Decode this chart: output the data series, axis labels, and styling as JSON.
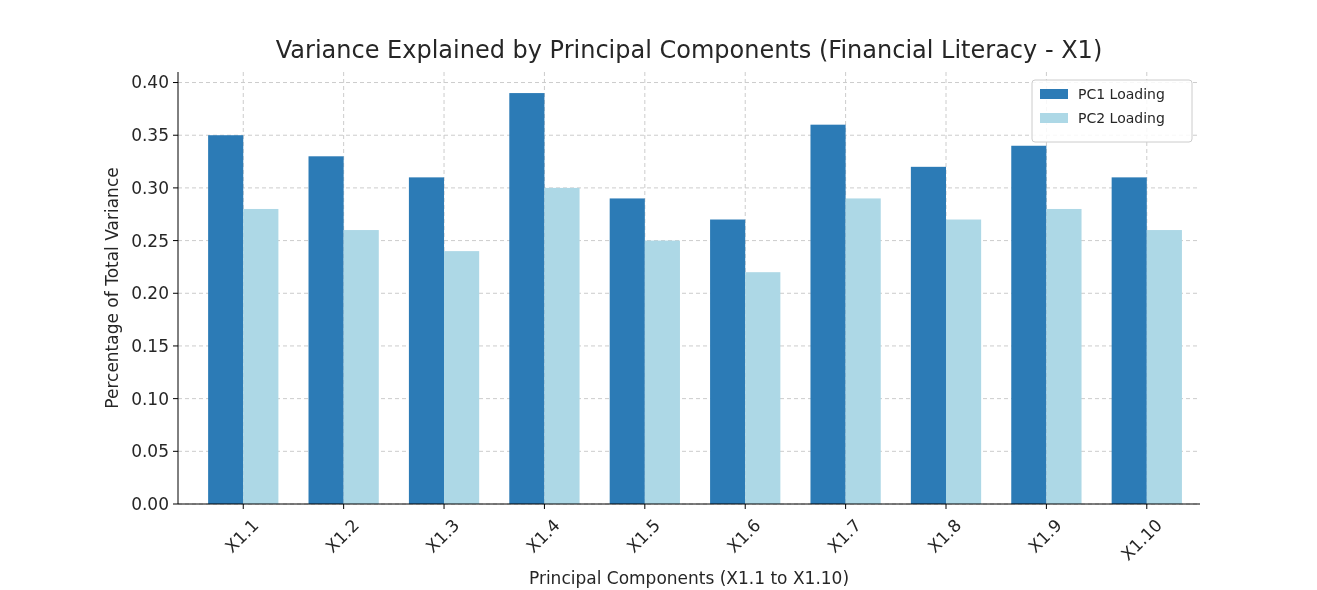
{
  "chart_data": {
    "type": "bar",
    "title": "Variance Explained by Principal Components (Financial Literacy - X1)",
    "xlabel": "Principal Components (X1.1 to X1.10)",
    "ylabel": "Percentage of Total Variance",
    "categories": [
      "X1.1",
      "X1.2",
      "X1.3",
      "X1.4",
      "X1.5",
      "X1.6",
      "X1.7",
      "X1.8",
      "X1.9",
      "X1.10"
    ],
    "series": [
      {
        "name": "PC1 Loading",
        "color": "#2c7bb6",
        "values": [
          0.35,
          0.33,
          0.31,
          0.39,
          0.29,
          0.27,
          0.36,
          0.32,
          0.34,
          0.31
        ]
      },
      {
        "name": "PC2 Loading",
        "color": "#add8e6",
        "values": [
          0.28,
          0.26,
          0.24,
          0.3,
          0.25,
          0.22,
          0.29,
          0.27,
          0.28,
          0.26
        ]
      }
    ],
    "ylim": [
      0,
      0.41
    ],
    "yticks": [
      {
        "value": 0,
        "label": "0.00"
      },
      {
        "value": 0.05,
        "label": "0.05"
      },
      {
        "value": 0.1,
        "label": "0.10"
      },
      {
        "value": 0.15,
        "label": "0.15"
      },
      {
        "value": 0.2,
        "label": "0.20"
      },
      {
        "value": 0.25,
        "label": "0.25"
      },
      {
        "value": 0.3,
        "label": "0.30"
      },
      {
        "value": 0.35,
        "label": "0.35"
      },
      {
        "value": 0.4,
        "label": "0.40"
      }
    ],
    "grid": true,
    "legend": "top right"
  }
}
